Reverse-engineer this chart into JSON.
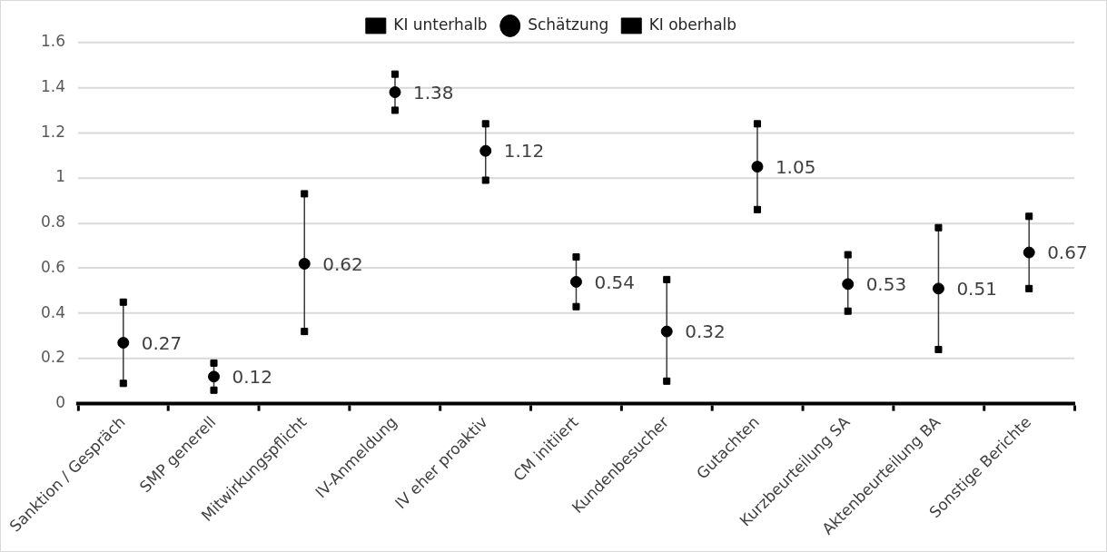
{
  "chart_data": {
    "type": "scatter",
    "categories": [
      "Sanktion / Gespräch",
      "SMP generell",
      "Mitwirkungspflicht",
      "IV-Anmeldung",
      "IV eher proaktiv",
      "CM initiiert",
      "Kundenbesucher",
      "Gutachten",
      "Kurzbeurteilung SA",
      "Aktenbeurteilung BA",
      "Sonstige Berichte"
    ],
    "series": [
      {
        "name": "KI unterhalb",
        "color": "#000000",
        "marker": "square",
        "values": [
          0.09,
          0.06,
          0.32,
          1.3,
          0.99,
          0.43,
          0.1,
          0.86,
          0.41,
          0.24,
          0.51
        ]
      },
      {
        "name": "Schätzung",
        "color": "#000000",
        "marker": "circle",
        "values": [
          0.27,
          0.12,
          0.62,
          1.38,
          1.12,
          0.54,
          0.32,
          1.05,
          0.53,
          0.51,
          0.67
        ],
        "value_labels": [
          "0.27",
          "0.12",
          "0.62",
          "1.38",
          "1.12",
          "0.54",
          "0.32",
          "1.05",
          "0.53",
          "0.51",
          "0.67"
        ]
      },
      {
        "name": "KI oberhalb",
        "color": "#000000",
        "marker": "square",
        "values": [
          0.45,
          0.18,
          0.93,
          1.46,
          1.24,
          0.65,
          0.55,
          1.24,
          0.66,
          0.78,
          0.83
        ]
      }
    ],
    "ylim": [
      0,
      1.6
    ],
    "yticks": [
      0,
      0.2,
      0.4,
      0.6,
      0.8,
      1,
      1.2,
      1.4,
      1.6
    ],
    "grid": "y",
    "legend": "top"
  }
}
